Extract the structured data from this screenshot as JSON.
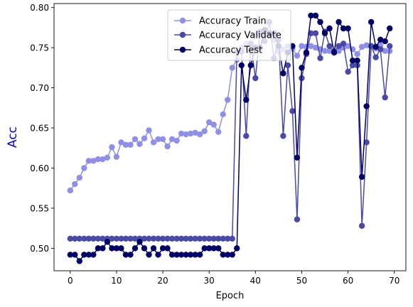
{
  "chart_data": {
    "type": "line",
    "title": "",
    "xlabel": "Epoch",
    "ylabel": "Acc",
    "xlim": [
      -3.5,
      72.5
    ],
    "ylim": [
      0.472,
      0.805
    ],
    "xticks": [
      0,
      10,
      20,
      30,
      40,
      50,
      60,
      70
    ],
    "yticks": [
      0.5,
      0.55,
      0.6,
      0.65,
      0.7,
      0.75,
      0.8
    ],
    "ytick_labels": [
      "0.50",
      "0.55",
      "0.60",
      "0.65",
      "0.70",
      "0.75",
      "0.80"
    ],
    "grid": false,
    "legend_position": "top-center",
    "ylabel_color": "#0000cc",
    "x": [
      0,
      1,
      2,
      3,
      4,
      5,
      6,
      7,
      8,
      9,
      10,
      11,
      12,
      13,
      14,
      15,
      16,
      17,
      18,
      19,
      20,
      21,
      22,
      23,
      24,
      25,
      26,
      27,
      28,
      29,
      30,
      31,
      32,
      33,
      34,
      35,
      36,
      37,
      38,
      39,
      40,
      41,
      42,
      43,
      44,
      45,
      46,
      47,
      48,
      49,
      50,
      51,
      52,
      53,
      54,
      55,
      56,
      57,
      58,
      59,
      60,
      61,
      62,
      63,
      64,
      65,
      66,
      67,
      68,
      69
    ],
    "series": [
      {
        "name": "Accuracy Train",
        "color": "#8f8fe8",
        "values": [
          0.572,
          0.58,
          0.588,
          0.6,
          0.609,
          0.609,
          0.611,
          0.611,
          0.613,
          0.626,
          0.614,
          0.632,
          0.629,
          0.629,
          0.636,
          0.63,
          0.637,
          0.647,
          0.632,
          0.636,
          0.636,
          0.627,
          0.636,
          0.634,
          0.643,
          0.642,
          0.643,
          0.644,
          0.642,
          0.646,
          0.657,
          0.654,
          0.645,
          0.667,
          0.685,
          0.725,
          0.735,
          0.75,
          0.755,
          0.752,
          0.765,
          0.769,
          0.772,
          0.765,
          0.76,
          0.745,
          0.748,
          0.752,
          0.749,
          0.74,
          0.752,
          0.751,
          0.752,
          0.75,
          0.748,
          0.746,
          0.746,
          0.744,
          0.746,
          0.75,
          0.752,
          0.748,
          0.742,
          0.751,
          0.753,
          0.752,
          0.749,
          0.753,
          0.746,
          0.746
        ]
      },
      {
        "name": "Accuracy Validate",
        "color": "#4949a8",
        "values": [
          0.512,
          0.512,
          0.512,
          0.512,
          0.512,
          0.512,
          0.512,
          0.512,
          0.512,
          0.512,
          0.512,
          0.512,
          0.512,
          0.512,
          0.512,
          0.512,
          0.512,
          0.512,
          0.512,
          0.512,
          0.512,
          0.512,
          0.512,
          0.512,
          0.512,
          0.512,
          0.512,
          0.512,
          0.512,
          0.512,
          0.512,
          0.512,
          0.512,
          0.512,
          0.512,
          0.512,
          0.745,
          0.745,
          0.64,
          0.755,
          0.712,
          0.77,
          0.758,
          0.782,
          0.737,
          0.76,
          0.64,
          0.728,
          0.671,
          0.536,
          0.712,
          0.742,
          0.768,
          0.768,
          0.737,
          0.77,
          0.752,
          0.745,
          0.752,
          0.755,
          0.72,
          0.728,
          0.728,
          0.528,
          0.632,
          0.752,
          0.738,
          0.748,
          0.688,
          0.752
        ]
      },
      {
        "name": "Accuracy Test",
        "color": "#000066",
        "values": [
          0.492,
          0.492,
          0.484,
          0.492,
          0.492,
          0.492,
          0.5,
          0.5,
          0.508,
          0.5,
          0.5,
          0.5,
          0.492,
          0.492,
          0.5,
          0.508,
          0.5,
          0.492,
          0.5,
          0.492,
          0.5,
          0.5,
          0.492,
          0.492,
          0.492,
          0.492,
          0.492,
          0.492,
          0.492,
          0.5,
          0.5,
          0.5,
          0.5,
          0.492,
          0.492,
          0.492,
          0.5,
          0.728,
          0.685,
          0.728,
          0.75,
          0.75,
          0.772,
          0.768,
          0.768,
          0.752,
          0.718,
          0.744,
          0.752,
          0.613,
          0.725,
          0.744,
          0.79,
          0.79,
          0.782,
          0.768,
          0.774,
          0.744,
          0.782,
          0.774,
          0.774,
          0.734,
          0.734,
          0.589,
          0.677,
          0.782,
          0.751,
          0.76,
          0.758,
          0.774
        ]
      }
    ]
  }
}
